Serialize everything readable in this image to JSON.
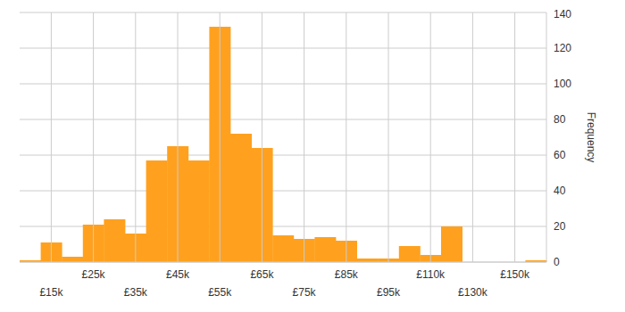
{
  "chart_data": {
    "type": "bar",
    "ylabel": "Frequency",
    "categories": [
      null,
      "£15k",
      null,
      "£25k",
      null,
      "£35k",
      null,
      "£45k",
      null,
      "£55k",
      null,
      "£65k",
      null,
      "£75k",
      null,
      "£85k",
      null,
      "£95k",
      null,
      "£110k",
      null,
      "£130k",
      null,
      "£150k",
      null
    ],
    "values": [
      1,
      11,
      3,
      21,
      24,
      16,
      57,
      65,
      57,
      132,
      72,
      64,
      15,
      13,
      14,
      12,
      2,
      2,
      9,
      4,
      20,
      0,
      0,
      0,
      1
    ],
    "color": "#ffa11e",
    "ylim": [
      0,
      140
    ],
    "yticks": [
      0,
      20,
      40,
      60,
      80,
      100,
      120,
      140
    ],
    "grid": true
  }
}
